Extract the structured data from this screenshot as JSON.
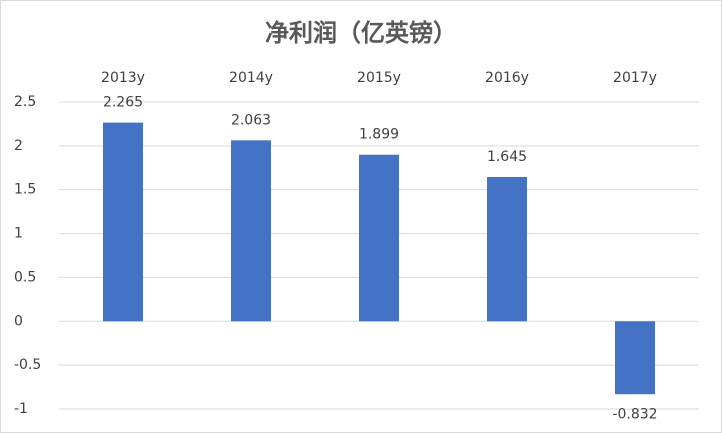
{
  "chart_data": {
    "type": "bar",
    "title": "净利润（亿英镑）",
    "categories": [
      "2013y",
      "2014y",
      "2015y",
      "2016y",
      "2017y"
    ],
    "values": [
      2.265,
      2.063,
      1.899,
      1.645,
      -0.832
    ],
    "color": "#4472c4",
    "ylim": [
      -1,
      2.5
    ],
    "yticks": [
      2.5,
      2,
      1.5,
      1,
      0.5,
      0,
      -0.5,
      -1
    ],
    "grid": true
  }
}
